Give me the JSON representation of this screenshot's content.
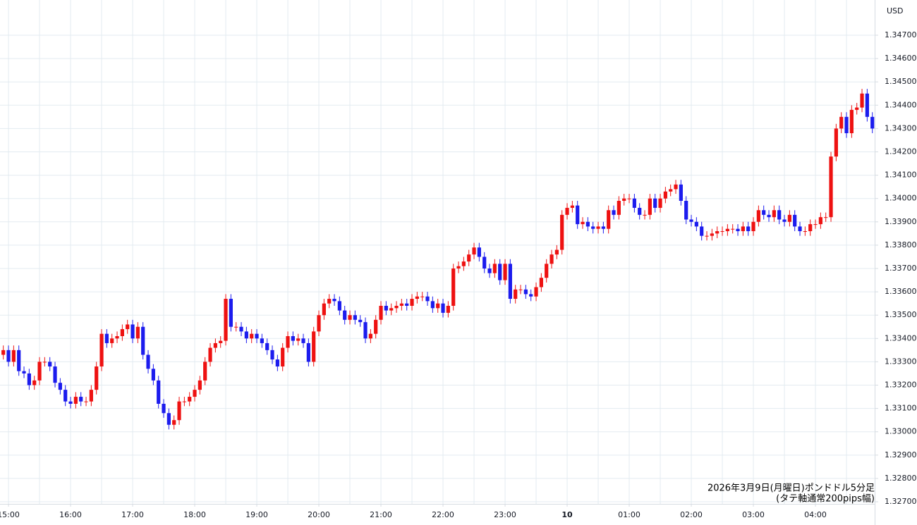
{
  "chart_data": {
    "type": "candlestick",
    "y_axis_label": "USD",
    "annotations": [
      "2026年3月9日(月曜日)ポンドドル5分足",
      "(タテ軸通常200pips幅)"
    ],
    "up_color": "#ee1111",
    "down_color": "#1c1cee",
    "grid": true,
    "ylim": [
      1.32691,
      1.34851
    ],
    "yticks": [
      {
        "value": 1.327,
        "label": "1.32700"
      },
      {
        "value": 1.328,
        "label": "1.32800"
      },
      {
        "value": 1.329,
        "label": "1.32900"
      },
      {
        "value": 1.33,
        "label": "1.33000"
      },
      {
        "value": 1.331,
        "label": "1.33100"
      },
      {
        "value": 1.332,
        "label": "1.33200"
      },
      {
        "value": 1.333,
        "label": "1.33300"
      },
      {
        "value": 1.334,
        "label": "1.33400"
      },
      {
        "value": 1.335,
        "label": "1.33500"
      },
      {
        "value": 1.336,
        "label": "1.33600"
      },
      {
        "value": 1.337,
        "label": "1.33700"
      },
      {
        "value": 1.338,
        "label": "1.33800"
      },
      {
        "value": 1.339,
        "label": "1.33900"
      },
      {
        "value": 1.34,
        "label": "1.34000"
      },
      {
        "value": 1.341,
        "label": "1.34100"
      },
      {
        "value": 1.342,
        "label": "1.34200"
      },
      {
        "value": 1.343,
        "label": "1.34300"
      },
      {
        "value": 1.344,
        "label": "1.34400"
      },
      {
        "value": 1.345,
        "label": "1.34500"
      },
      {
        "value": 1.346,
        "label": "1.34600"
      },
      {
        "value": 1.347,
        "label": "1.34700"
      }
    ],
    "categories": [
      null,
      "15:00",
      null,
      null,
      null,
      null,
      null,
      null,
      null,
      null,
      null,
      null,
      null,
      "16:00",
      null,
      null,
      null,
      null,
      null,
      null,
      null,
      null,
      null,
      null,
      null,
      "17:00",
      null,
      null,
      null,
      null,
      null,
      null,
      null,
      null,
      null,
      null,
      null,
      "18:00",
      null,
      null,
      null,
      null,
      null,
      null,
      null,
      null,
      null,
      null,
      null,
      "19:00",
      null,
      null,
      null,
      null,
      null,
      null,
      null,
      null,
      null,
      null,
      null,
      "20:00",
      null,
      null,
      null,
      null,
      null,
      null,
      null,
      null,
      null,
      null,
      null,
      "21:00",
      null,
      null,
      null,
      null,
      null,
      null,
      null,
      null,
      null,
      null,
      null,
      "22:00",
      null,
      null,
      null,
      null,
      null,
      null,
      null,
      null,
      null,
      null,
      null,
      "23:00",
      null,
      null,
      null,
      null,
      null,
      null,
      null,
      null,
      null,
      null,
      null,
      "10",
      null,
      null,
      null,
      null,
      null,
      null,
      null,
      null,
      null,
      null,
      null,
      "01:00",
      null,
      null,
      null,
      null,
      null,
      null,
      null,
      null,
      null,
      null,
      null,
      "02:00",
      null,
      null,
      null,
      null,
      null,
      null,
      null,
      null,
      null,
      null,
      null,
      "03:00",
      null,
      null,
      null,
      null,
      null,
      null,
      null,
      null,
      null,
      null,
      null,
      "04:00",
      null,
      null,
      null,
      null,
      null,
      null,
      null,
      null,
      null,
      null,
      null
    ],
    "open": [
      1.3333,
      1.3335,
      1.333,
      1.3335,
      1.3326,
      1.3325,
      1.332,
      1.3322,
      1.333,
      1.333,
      1.3328,
      1.3321,
      1.3318,
      1.3313,
      1.3312,
      1.3315,
      1.3313,
      1.3313,
      1.3318,
      1.3328,
      1.3342,
      1.3338,
      1.334,
      1.3341,
      1.3344,
      1.3346,
      1.334,
      1.3345,
      1.3333,
      1.3327,
      1.3322,
      1.3312,
      1.3308,
      1.3303,
      1.3305,
      1.3313,
      1.3313,
      1.3315,
      1.3318,
      1.3322,
      1.333,
      1.3336,
      1.3338,
      1.3339,
      1.3357,
      1.3345,
      1.3345,
      1.3343,
      1.334,
      1.3342,
      1.334,
      1.3338,
      1.3335,
      1.3331,
      1.3328,
      1.3336,
      1.3341,
      1.3339,
      1.334,
      1.3338,
      1.333,
      1.3343,
      1.335,
      1.3355,
      1.3357,
      1.3356,
      1.3352,
      1.3348,
      1.335,
      1.3348,
      1.3347,
      1.334,
      1.3342,
      1.3348,
      1.3354,
      1.3352,
      1.3353,
      1.3354,
      1.3355,
      1.3354,
      1.3357,
      1.3358,
      1.3358,
      1.3356,
      1.3353,
      1.3355,
      1.3351,
      1.3354,
      1.337,
      1.3371,
      1.3373,
      1.3376,
      1.3379,
      1.3375,
      1.337,
      1.3368,
      1.3372,
      1.3365,
      1.3372,
      1.3357,
      1.3361,
      1.3361,
      1.3359,
      1.3358,
      1.3362,
      1.3366,
      1.3372,
      1.3376,
      1.3378,
      1.3393,
      1.3396,
      1.3397,
      1.3389,
      1.339,
      1.3388,
      1.3387,
      1.3388,
      1.3387,
      1.3395,
      1.3393,
      1.3399,
      1.34,
      1.34,
      1.3396,
      1.3393,
      1.3393,
      1.34,
      1.3396,
      1.34,
      1.3403,
      1.3404,
      1.3406,
      1.3399,
      1.3391,
      1.339,
      1.3388,
      1.3384,
      1.3384,
      1.3385,
      1.3386,
      1.3386,
      1.3387,
      1.3387,
      1.3386,
      1.3388,
      1.3386,
      1.339,
      1.3395,
      1.3393,
      1.3392,
      1.3395,
      1.3391,
      1.339,
      1.3393,
      1.3388,
      1.3386,
      1.3386,
      1.3389,
      1.3389,
      1.3392,
      1.3392,
      1.3418,
      1.343,
      1.3435,
      1.3428,
      1.3438,
      1.3439,
      1.3445,
      1.3435
    ],
    "high": [
      1.3337,
      1.3337,
      1.3337,
      1.3337,
      1.3328,
      1.3327,
      1.3324,
      1.3332,
      1.3332,
      1.3332,
      1.333,
      1.3323,
      1.332,
      1.3315,
      1.3317,
      1.3317,
      1.3315,
      1.332,
      1.333,
      1.3344,
      1.3344,
      1.3342,
      1.3343,
      1.3346,
      1.3348,
      1.3348,
      1.3347,
      1.3347,
      1.3335,
      1.3329,
      1.3324,
      1.3314,
      1.331,
      1.3307,
      1.3315,
      1.3315,
      1.3317,
      1.332,
      1.3324,
      1.3332,
      1.3338,
      1.334,
      1.3341,
      1.3359,
      1.3359,
      1.3347,
      1.3347,
      1.3345,
      1.3344,
      1.3344,
      1.3342,
      1.334,
      1.3337,
      1.3333,
      1.3338,
      1.3343,
      1.3343,
      1.3342,
      1.3342,
      1.334,
      1.3345,
      1.3352,
      1.3357,
      1.3359,
      1.3359,
      1.3358,
      1.3354,
      1.3352,
      1.3352,
      1.335,
      1.3349,
      1.3344,
      1.335,
      1.3356,
      1.3356,
      1.3355,
      1.3356,
      1.3357,
      1.3357,
      1.3359,
      1.336,
      1.336,
      1.336,
      1.3358,
      1.3357,
      1.3357,
      1.3356,
      1.3372,
      1.3373,
      1.3375,
      1.3378,
      1.3381,
      1.3381,
      1.3377,
      1.3372,
      1.3374,
      1.3374,
      1.3374,
      1.3374,
      1.3363,
      1.3363,
      1.3363,
      1.3361,
      1.3364,
      1.3368,
      1.3374,
      1.3378,
      1.338,
      1.3395,
      1.3398,
      1.3399,
      1.3399,
      1.3392,
      1.3392,
      1.339,
      1.339,
      1.339,
      1.3397,
      1.3397,
      1.3401,
      1.3402,
      1.3402,
      1.3402,
      1.3398,
      1.3395,
      1.3402,
      1.3402,
      1.3402,
      1.3405,
      1.3406,
      1.3408,
      1.3408,
      1.3401,
      1.3393,
      1.3392,
      1.339,
      1.3386,
      1.3387,
      1.3388,
      1.3388,
      1.3389,
      1.3389,
      1.3389,
      1.339,
      1.339,
      1.3392,
      1.3397,
      1.3397,
      1.3395,
      1.3397,
      1.3397,
      1.3393,
      1.3395,
      1.3395,
      1.339,
      1.3388,
      1.3391,
      1.3391,
      1.3394,
      1.3394,
      1.342,
      1.3432,
      1.3437,
      1.3437,
      1.344,
      1.3441,
      1.3447,
      1.3447,
      1.3437
    ],
    "low": [
      1.3331,
      1.3328,
      1.3328,
      1.3324,
      1.3323,
      1.3318,
      1.3318,
      1.332,
      1.3328,
      1.3326,
      1.3319,
      1.3316,
      1.3311,
      1.331,
      1.331,
      1.3311,
      1.3311,
      1.3311,
      1.3316,
      1.3326,
      1.3336,
      1.3336,
      1.3338,
      1.3339,
      1.3342,
      1.3338,
      1.3338,
      1.3331,
      1.3325,
      1.332,
      1.331,
      1.3306,
      1.3301,
      1.3301,
      1.3303,
      1.3311,
      1.3311,
      1.3313,
      1.3316,
      1.332,
      1.3328,
      1.3334,
      1.3336,
      1.3337,
      1.3343,
      1.3343,
      1.3341,
      1.3338,
      1.3338,
      1.3338,
      1.3336,
      1.3333,
      1.3329,
      1.3326,
      1.3326,
      1.3334,
      1.3337,
      1.3337,
      1.3336,
      1.3328,
      1.3328,
      1.3341,
      1.3348,
      1.3353,
      1.3354,
      1.335,
      1.3346,
      1.3346,
      1.3346,
      1.3345,
      1.3338,
      1.3338,
      1.334,
      1.3346,
      1.335,
      1.335,
      1.3351,
      1.3352,
      1.3352,
      1.3352,
      1.3355,
      1.3356,
      1.3354,
      1.3351,
      1.3351,
      1.3349,
      1.3349,
      1.3352,
      1.3368,
      1.3369,
      1.3371,
      1.3374,
      1.3373,
      1.3368,
      1.3366,
      1.3366,
      1.3363,
      1.3363,
      1.3355,
      1.3355,
      1.3359,
      1.3357,
      1.3356,
      1.3356,
      1.336,
      1.3364,
      1.337,
      1.3374,
      1.3376,
      1.3391,
      1.3394,
      1.3387,
      1.3387,
      1.3386,
      1.3385,
      1.3385,
      1.3385,
      1.3385,
      1.3391,
      1.3391,
      1.3397,
      1.3398,
      1.3394,
      1.3391,
      1.3391,
      1.3391,
      1.3394,
      1.3394,
      1.3398,
      1.3401,
      1.3402,
      1.3397,
      1.3389,
      1.3388,
      1.3386,
      1.3382,
      1.3382,
      1.3382,
      1.3383,
      1.3384,
      1.3384,
      1.3385,
      1.3384,
      1.3384,
      1.3384,
      1.3384,
      1.3388,
      1.3391,
      1.339,
      1.339,
      1.3389,
      1.3388,
      1.3388,
      1.3386,
      1.3384,
      1.3384,
      1.3384,
      1.3387,
      1.3387,
      1.339,
      1.339,
      1.3416,
      1.3428,
      1.3426,
      1.3426,
      1.3436,
      1.3437,
      1.3433,
      1.3428
    ],
    "close": [
      1.3335,
      1.333,
      1.3335,
      1.3326,
      1.3325,
      1.332,
      1.3322,
      1.333,
      1.333,
      1.3328,
      1.3321,
      1.3318,
      1.3313,
      1.3312,
      1.3315,
      1.3313,
      1.3313,
      1.3318,
      1.3328,
      1.3342,
      1.3338,
      1.334,
      1.3341,
      1.3344,
      1.3346,
      1.334,
      1.3345,
      1.3333,
      1.3327,
      1.3322,
      1.3312,
      1.3308,
      1.3303,
      1.3305,
      1.3313,
      1.3313,
      1.3315,
      1.3318,
      1.3322,
      1.333,
      1.3336,
      1.3338,
      1.3339,
      1.3357,
      1.3345,
      1.3345,
      1.3343,
      1.334,
      1.3342,
      1.334,
      1.3338,
      1.3335,
      1.3331,
      1.3328,
      1.3336,
      1.3341,
      1.3339,
      1.334,
      1.3338,
      1.333,
      1.3343,
      1.335,
      1.3355,
      1.3357,
      1.3356,
      1.3352,
      1.3348,
      1.335,
      1.3348,
      1.3347,
      1.334,
      1.3342,
      1.3348,
      1.3354,
      1.3352,
      1.3353,
      1.3354,
      1.3355,
      1.3354,
      1.3357,
      1.3358,
      1.3358,
      1.3356,
      1.3353,
      1.3355,
      1.3351,
      1.3354,
      1.337,
      1.3371,
      1.3373,
      1.3376,
      1.3379,
      1.3375,
      1.337,
      1.3368,
      1.3372,
      1.3365,
      1.3372,
      1.3357,
      1.3361,
      1.3361,
      1.3359,
      1.3358,
      1.3362,
      1.3366,
      1.3372,
      1.3376,
      1.3378,
      1.3393,
      1.3396,
      1.3397,
      1.3389,
      1.339,
      1.3388,
      1.3387,
      1.3388,
      1.3387,
      1.3395,
      1.3393,
      1.3399,
      1.34,
      1.34,
      1.3396,
      1.3393,
      1.3393,
      1.34,
      1.3396,
      1.34,
      1.3403,
      1.3404,
      1.3406,
      1.3399,
      1.3391,
      1.339,
      1.3388,
      1.3384,
      1.3384,
      1.3385,
      1.3386,
      1.3386,
      1.3387,
      1.3387,
      1.3386,
      1.3388,
      1.3386,
      1.339,
      1.3395,
      1.3393,
      1.3392,
      1.3395,
      1.3391,
      1.339,
      1.3393,
      1.3388,
      1.3386,
      1.3386,
      1.3389,
      1.3389,
      1.3392,
      1.3392,
      1.3418,
      1.343,
      1.3435,
      1.3428,
      1.3438,
      1.3439,
      1.3445,
      1.3435,
      1.343
    ]
  }
}
